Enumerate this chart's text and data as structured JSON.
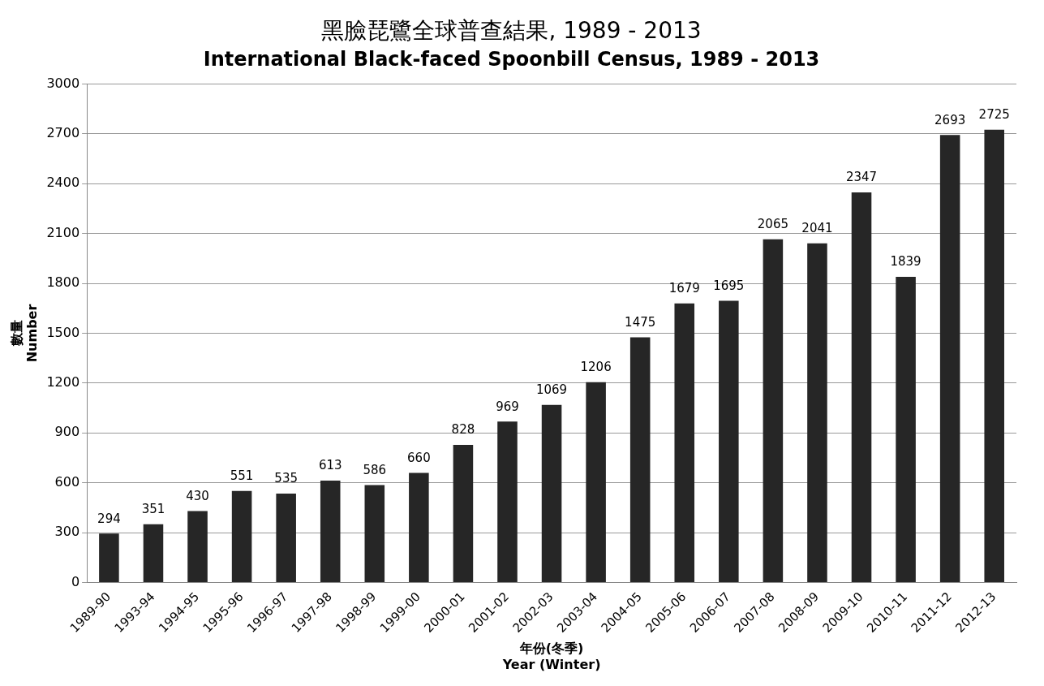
{
  "chart_data": {
    "type": "bar",
    "title": "黑臉琵鷺全球普查結果, 1989 - 2013",
    "subtitle": "International Black-faced Spoonbill Census, 1989 - 2013",
    "xlabel": "年份(冬季)\nYear (Winter)",
    "ylabel": "數量\nNumber",
    "categories": [
      "1989-90",
      "1993-94",
      "1994-95",
      "1995-96",
      "1996-97",
      "1997-98",
      "1998-99",
      "1999-00",
      "2000-01",
      "2001-02",
      "2002-03",
      "2003-04",
      "2004-05",
      "2005-06",
      "2006-07",
      "2007-08",
      "2008-09",
      "2009-10",
      "2010-11",
      "2011-12",
      "2012-13"
    ],
    "values": [
      294,
      351,
      430,
      551,
      535,
      613,
      586,
      660,
      828,
      969,
      1069,
      1206,
      1475,
      1679,
      1695,
      2065,
      2041,
      2347,
      1839,
      2693,
      2725
    ],
    "color": "#262626",
    "ylim": [
      0,
      3000
    ],
    "yticks": [
      0,
      300,
      600,
      900,
      1200,
      1500,
      1800,
      2100,
      2400,
      2700,
      3000
    ],
    "grid": "y",
    "data_labels": true
  }
}
